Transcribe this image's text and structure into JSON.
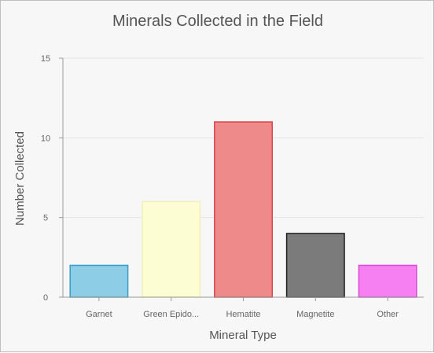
{
  "chart_data": {
    "type": "bar",
    "title": "Minerals Collected in the Field",
    "xlabel": "Mineral Type",
    "ylabel": "Number Collected",
    "categories": [
      "Garnet",
      "Green Epido...",
      "Hematite",
      "Magnetite",
      "Other"
    ],
    "values": [
      2,
      6,
      11,
      4,
      2
    ],
    "ylim": [
      0,
      15
    ],
    "yticks": [
      0,
      5,
      10,
      15
    ],
    "grid": true,
    "legend": "none",
    "colors": {
      "fills": [
        "#8ecde6",
        "#fdfdd4",
        "#ef8a8a",
        "#7b7b7b",
        "#f67ff2"
      ],
      "strokes": [
        "#3b9cc8",
        "#f0f0b8",
        "#d9454b",
        "#1e1e1e",
        "#d94bd6"
      ]
    }
  }
}
